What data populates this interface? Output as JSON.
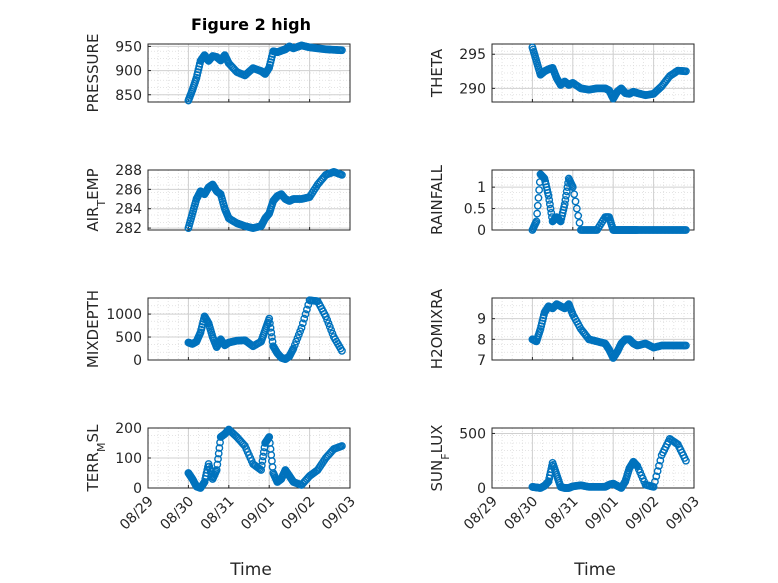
{
  "figure": {
    "title": "Figure 2 high",
    "marker_color": "#0072BD",
    "grid": true,
    "minor_grid": true,
    "xaxis_label": "Time",
    "xaxis_ticks": [
      "08/29",
      "08/30",
      "08/31",
      "09/01",
      "09/02",
      "09/03"
    ]
  },
  "chart_data": [
    {
      "type": "scatter",
      "ylabel": "PRESSURE",
      "ylim": [
        835,
        955
      ],
      "yticks": [
        850,
        900,
        950
      ],
      "x": [
        1.0,
        1.1,
        1.2,
        1.3,
        1.4,
        1.5,
        1.6,
        1.7,
        1.8,
        1.9,
        2.0,
        2.2,
        2.4,
        2.6,
        2.8,
        2.9,
        3.0,
        3.1,
        3.2,
        3.3,
        3.4,
        3.5,
        3.6,
        3.8,
        4.0,
        4.2,
        4.4,
        4.6,
        4.8
      ],
      "y": [
        838,
        860,
        885,
        920,
        932,
        920,
        930,
        928,
        921,
        932,
        915,
        897,
        890,
        905,
        899,
        893,
        906,
        940,
        938,
        941,
        944,
        950,
        946,
        952,
        948,
        946,
        944,
        943,
        942
      ]
    },
    {
      "type": "scatter",
      "ylabel": "THETA",
      "ylim": [
        288,
        296.5
      ],
      "yticks": [
        290,
        295
      ],
      "x": [
        1.0,
        1.1,
        1.2,
        1.3,
        1.4,
        1.5,
        1.6,
        1.7,
        1.8,
        1.9,
        2.0,
        2.2,
        2.4,
        2.6,
        2.8,
        2.9,
        3.0,
        3.1,
        3.2,
        3.3,
        3.4,
        3.5,
        3.6,
        3.8,
        4.0,
        4.2,
        4.4,
        4.6,
        4.8
      ],
      "y": [
        296,
        294,
        292,
        292.5,
        292.8,
        293,
        291.5,
        290.5,
        291,
        290.5,
        290.8,
        290,
        289.8,
        290,
        290,
        289.7,
        288.5,
        289.5,
        290,
        289.3,
        289.2,
        289.5,
        289.3,
        289.0,
        289.2,
        290.3,
        291.8,
        292.6,
        292.5
      ]
    },
    {
      "type": "scatter",
      "ylabel": "AIR_TEMP",
      "ylim": [
        281.8,
        288
      ],
      "yticks": [
        282,
        284,
        286,
        288
      ],
      "x": [
        1.0,
        1.1,
        1.2,
        1.3,
        1.4,
        1.5,
        1.6,
        1.7,
        1.8,
        1.9,
        2.0,
        2.2,
        2.4,
        2.6,
        2.8,
        2.9,
        3.0,
        3.1,
        3.2,
        3.3,
        3.4,
        3.5,
        3.6,
        3.8,
        4.0,
        4.2,
        4.4,
        4.6,
        4.8
      ],
      "y": [
        282,
        283.5,
        285,
        285.8,
        285.5,
        286.2,
        286.5,
        285.8,
        285.5,
        284,
        283,
        282.5,
        282.2,
        282,
        282.2,
        283,
        283.5,
        284.8,
        285.3,
        285.5,
        285,
        284.8,
        285,
        285,
        285.2,
        286.5,
        287.5,
        287.8,
        287.5
      ]
    },
    {
      "type": "scatter",
      "ylabel": "RAINFALL",
      "ylim": [
        0,
        1.4
      ],
      "yticks": [
        0,
        0.5,
        1
      ],
      "x": [
        1.0,
        1.1,
        1.2,
        1.3,
        1.4,
        1.5,
        1.6,
        1.7,
        1.8,
        1.9,
        2.0,
        2.2,
        2.4,
        2.6,
        2.8,
        2.9,
        3.0,
        3.1,
        3.2,
        3.3,
        3.4,
        3.5,
        3.6,
        3.8,
        4.0,
        4.2,
        4.4,
        4.6,
        4.8
      ],
      "y": [
        0,
        0.2,
        1.3,
        1.2,
        0.8,
        0.2,
        0.3,
        0.2,
        0.6,
        1.2,
        1.0,
        0,
        0,
        0,
        0.3,
        0.3,
        0,
        0,
        0,
        0,
        0,
        0,
        0,
        0,
        0,
        0,
        0,
        0,
        0
      ]
    },
    {
      "type": "scatter",
      "ylabel": "MIXDEPTH",
      "ylim": [
        0,
        1350
      ],
      "yticks": [
        0,
        500,
        1000
      ],
      "x": [
        1.0,
        1.1,
        1.2,
        1.3,
        1.4,
        1.5,
        1.6,
        1.7,
        1.8,
        1.9,
        2.0,
        2.2,
        2.4,
        2.6,
        2.8,
        2.9,
        3.0,
        3.1,
        3.2,
        3.3,
        3.4,
        3.5,
        3.6,
        3.8,
        4.0,
        4.2,
        4.4,
        4.6,
        4.8
      ],
      "y": [
        380,
        350,
        400,
        600,
        950,
        800,
        500,
        280,
        450,
        320,
        380,
        420,
        430,
        300,
        400,
        650,
        900,
        300,
        150,
        50,
        20,
        80,
        250,
        700,
        1300,
        1280,
        950,
        500,
        200
      ]
    },
    {
      "type": "scatter",
      "ylabel": "H2OMIXRA",
      "ylim": [
        7,
        10
      ],
      "yticks": [
        7,
        8,
        9
      ],
      "x": [
        1.0,
        1.1,
        1.2,
        1.3,
        1.4,
        1.5,
        1.6,
        1.7,
        1.8,
        1.9,
        2.0,
        2.2,
        2.4,
        2.6,
        2.8,
        2.9,
        3.0,
        3.1,
        3.2,
        3.3,
        3.4,
        3.5,
        3.6,
        3.8,
        4.0,
        4.2,
        4.4,
        4.6,
        4.8
      ],
      "y": [
        8,
        7.9,
        8.5,
        9.3,
        9.6,
        9.5,
        9.7,
        9.6,
        9.5,
        9.7,
        9.2,
        8.5,
        8.0,
        7.9,
        7.8,
        7.5,
        7.1,
        7.4,
        7.8,
        8.0,
        8.0,
        7.8,
        7.7,
        7.8,
        7.6,
        7.7,
        7.7,
        7.7,
        7.7
      ]
    },
    {
      "type": "scatter",
      "ylabel": "TERR_MSL",
      "ylim": [
        0,
        200
      ],
      "yticks": [
        0,
        100,
        200
      ],
      "x": [
        1.0,
        1.1,
        1.2,
        1.3,
        1.4,
        1.5,
        1.6,
        1.7,
        1.8,
        1.9,
        2.0,
        2.2,
        2.4,
        2.6,
        2.8,
        2.9,
        3.0,
        3.1,
        3.2,
        3.3,
        3.4,
        3.5,
        3.6,
        3.8,
        4.0,
        4.2,
        4.4,
        4.6,
        4.8
      ],
      "y": [
        50,
        30,
        5,
        0,
        20,
        80,
        30,
        60,
        170,
        180,
        195,
        170,
        140,
        80,
        60,
        150,
        170,
        50,
        20,
        30,
        60,
        40,
        20,
        10,
        40,
        60,
        100,
        130,
        140
      ]
    },
    {
      "type": "scatter",
      "ylabel": "SUN_FLUX",
      "ylim": [
        0,
        550
      ],
      "yticks": [
        0,
        500
      ],
      "x": [
        1.0,
        1.1,
        1.2,
        1.3,
        1.4,
        1.5,
        1.6,
        1.7,
        1.8,
        1.9,
        2.0,
        2.2,
        2.4,
        2.6,
        2.8,
        2.9,
        3.0,
        3.1,
        3.2,
        3.3,
        3.4,
        3.5,
        3.6,
        3.8,
        4.0,
        4.2,
        4.4,
        4.6,
        4.8
      ],
      "y": [
        10,
        5,
        0,
        20,
        60,
        230,
        120,
        10,
        0,
        0,
        15,
        25,
        10,
        10,
        10,
        30,
        40,
        20,
        0,
        60,
        180,
        240,
        200,
        30,
        10,
        300,
        450,
        400,
        250
      ]
    }
  ]
}
